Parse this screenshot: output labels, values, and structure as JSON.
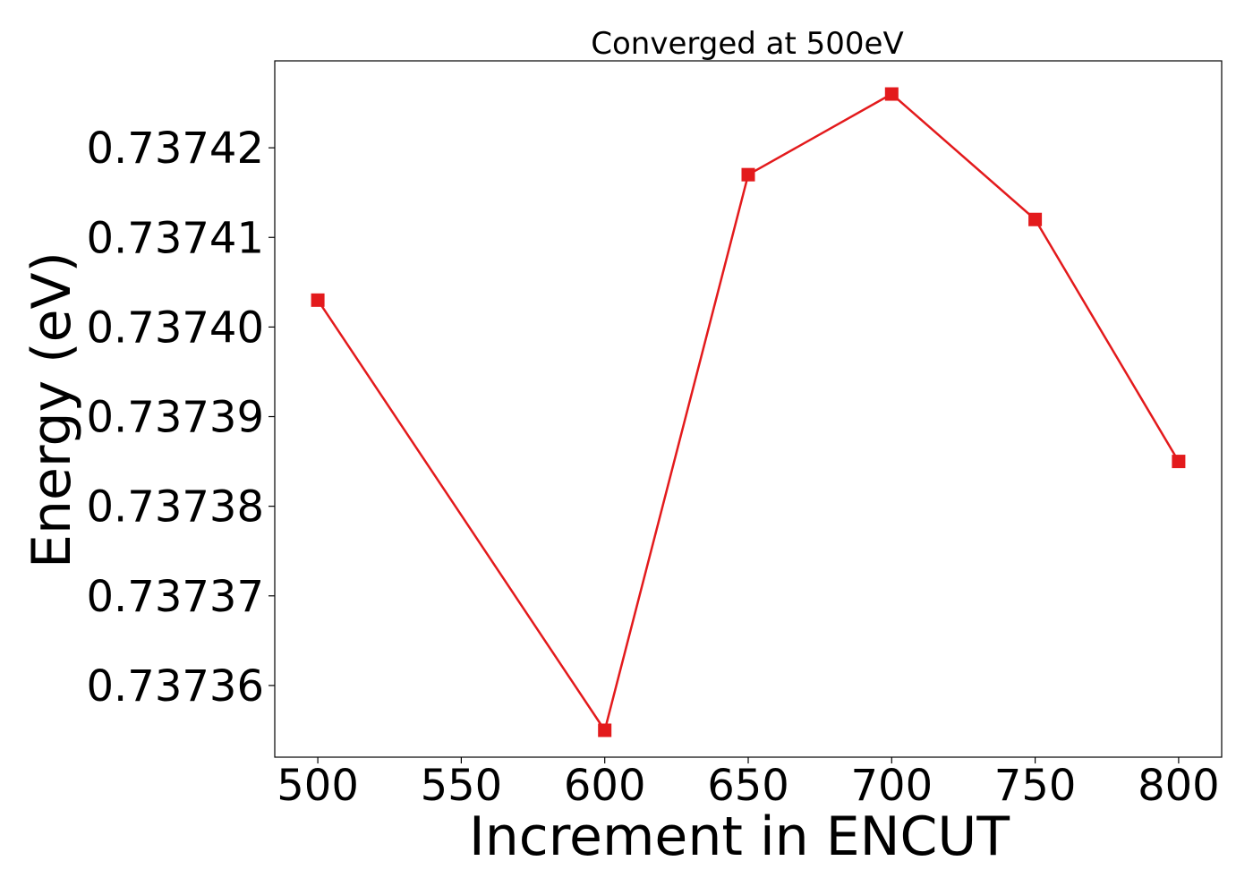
{
  "chart_data": {
    "type": "line",
    "title": "Converged at 500eV",
    "xlabel": "Increment in ENCUT",
    "ylabel": "Energy (eV)",
    "x": [
      500,
      600,
      650,
      700,
      750,
      800
    ],
    "series": [
      {
        "values": [
          0.737403,
          0.737355,
          0.737417,
          0.737426,
          0.737412,
          0.737385
        ],
        "color": "#e31a1c",
        "marker": "square"
      }
    ],
    "xlim": [
      485,
      815
    ],
    "ylim": [
      0.737352,
      0.7374297
    ],
    "xticks": [
      500,
      550,
      600,
      650,
      700,
      750,
      800
    ],
    "xtick_labels": [
      "500",
      "550",
      "600",
      "650",
      "700",
      "750",
      "800"
    ],
    "yticks": [
      0.73736,
      0.73737,
      0.73738,
      0.73739,
      0.7374,
      0.73741,
      0.73742
    ],
    "ytick_labels": [
      "0.73736",
      "0.73737",
      "0.73738",
      "0.73739",
      "0.73740",
      "0.73741",
      "0.73742"
    ],
    "grid": false,
    "legend": false
  }
}
